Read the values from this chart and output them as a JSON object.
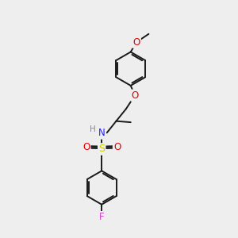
{
  "bg_color": "#eeeeee",
  "bond_color": "#1a1a1a",
  "atom_colors": {
    "O": "#e00000",
    "N": "#2222ff",
    "S": "#cccc00",
    "F": "#cc44cc",
    "H": "#888899",
    "C": "#1a1a1a"
  },
  "figsize": [
    3.0,
    3.0
  ],
  "dpi": 100,
  "lw": 1.4,
  "ring_r": 0.72,
  "font_size": 8.5
}
